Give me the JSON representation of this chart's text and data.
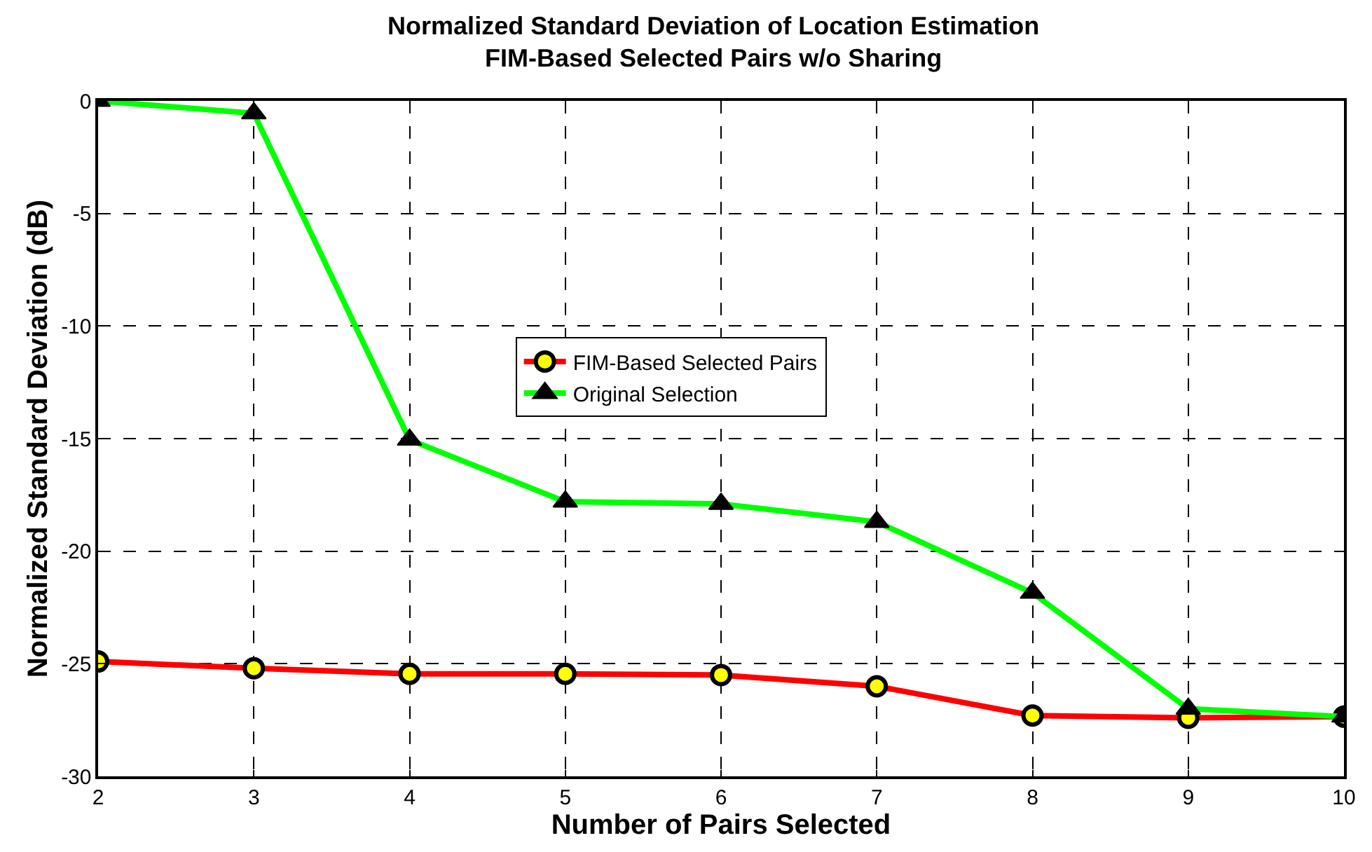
{
  "chart_data": {
    "type": "line",
    "title": "Normalized Standard Deviation of Location Estimation",
    "subtitle": "FIM-Based Selected Pairs w/o Sharing",
    "xlabel": "Number of Pairs Selected",
    "ylabel": "Normalized Standard Deviation (dB)",
    "x": [
      2,
      3,
      4,
      5,
      6,
      7,
      8,
      9,
      10
    ],
    "series": [
      {
        "name": "FIM-Based Selected Pairs",
        "color": "#ff0000",
        "marker": "circle",
        "values": [
          -24.9,
          -25.2,
          -25.45,
          -25.45,
          -25.5,
          -26.0,
          -27.3,
          -27.4,
          -27.35
        ]
      },
      {
        "name": "Original Selection",
        "color": "#00ff00",
        "marker": "triangle",
        "values": [
          0,
          -0.55,
          -15.05,
          -17.8,
          -17.9,
          -18.7,
          -21.85,
          -27.0,
          -27.35
        ]
      }
    ],
    "xlim": [
      2,
      10
    ],
    "xticks": [
      2,
      3,
      4,
      5,
      6,
      7,
      8,
      9,
      10
    ],
    "ylim": [
      -30,
      0
    ],
    "yticks": [
      -30,
      -25,
      -20,
      -15,
      -10,
      -5,
      0
    ],
    "grid": true,
    "legend": "center",
    "line_style": "solid"
  }
}
